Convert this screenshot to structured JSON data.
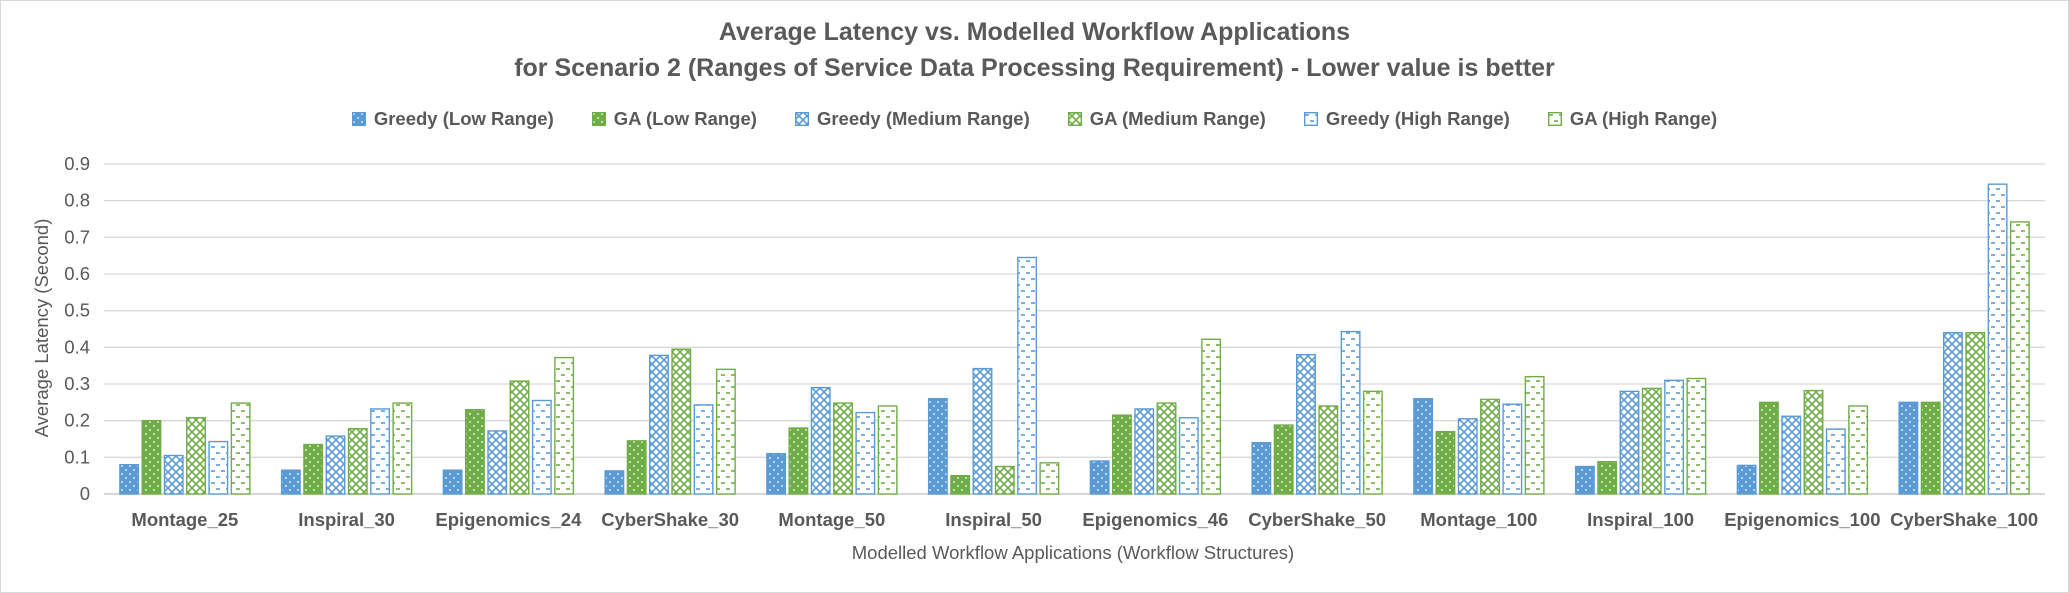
{
  "chart_data": {
    "type": "bar",
    "title": "Average Latency vs. Modelled Workflow Applications",
    "subtitle": "for Scenario 2 (Ranges of Service Data Processing Requirement) - Lower value is better",
    "xlabel": "Modelled Workflow Applications (Workflow Structures)",
    "ylabel": "Average Latency (Second)",
    "ylim": [
      0,
      0.9
    ],
    "yticks": [
      "0",
      "0.1",
      "0.2",
      "0.3",
      "0.4",
      "0.5",
      "0.6",
      "0.7",
      "0.8",
      "0.9"
    ],
    "grid": true,
    "legend_position": "top",
    "categories": [
      "Montage_25",
      "Inspiral_30",
      "Epigenomics_24",
      "CyberShake_30",
      "Montage_50",
      "Inspiral_50",
      "Epigenomics_46",
      "CyberShake_50",
      "Montage_100",
      "Inspiral_100",
      "Epigenomics_100",
      "CyberShake_100"
    ],
    "series": [
      {
        "name": "Greedy (Low Range)",
        "color": "#5b9bd5",
        "pattern": "dots",
        "values": [
          0.08,
          0.065,
          0.065,
          0.063,
          0.11,
          0.26,
          0.09,
          0.14,
          0.26,
          0.075,
          0.078,
          0.25
        ]
      },
      {
        "name": "GA (Low Range)",
        "color": "#70ad47",
        "pattern": "dots",
        "values": [
          0.2,
          0.135,
          0.23,
          0.145,
          0.18,
          0.05,
          0.215,
          0.188,
          0.17,
          0.088,
          0.25,
          0.25
        ]
      },
      {
        "name": "Greedy (Medium Range)",
        "color": "#5b9bd5",
        "pattern": "checker",
        "values": [
          0.105,
          0.158,
          0.172,
          0.378,
          0.29,
          0.342,
          0.232,
          0.38,
          0.205,
          0.28,
          0.212,
          0.44
        ]
      },
      {
        "name": "GA (Medium Range)",
        "color": "#70ad47",
        "pattern": "checker",
        "values": [
          0.208,
          0.178,
          0.308,
          0.395,
          0.248,
          0.075,
          0.248,
          0.24,
          0.258,
          0.288,
          0.282,
          0.44
        ]
      },
      {
        "name": "Greedy (High Range)",
        "color": "#5b9bd5",
        "pattern": "dashes",
        "values": [
          0.143,
          0.232,
          0.255,
          0.243,
          0.222,
          0.645,
          0.208,
          0.443,
          0.245,
          0.31,
          0.177,
          0.845
        ]
      },
      {
        "name": "GA (High Range)",
        "color": "#70ad47",
        "pattern": "dashes",
        "values": [
          0.248,
          0.248,
          0.372,
          0.34,
          0.24,
          0.085,
          0.422,
          0.28,
          0.32,
          0.315,
          0.24,
          0.742
        ]
      }
    ]
  }
}
